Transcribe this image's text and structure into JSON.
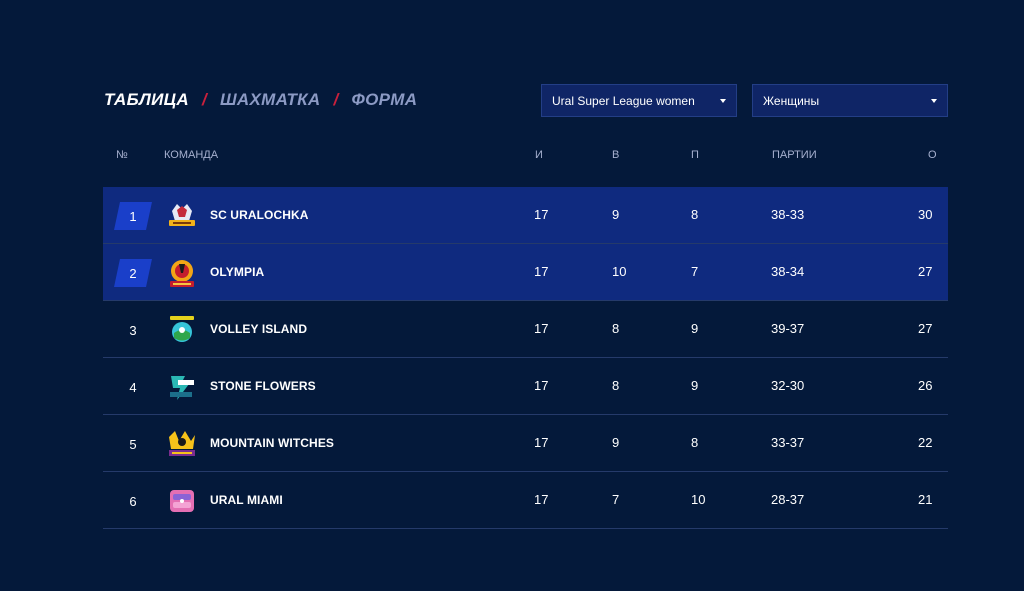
{
  "tabs": [
    {
      "label": "ТАБЛИЦА",
      "active": true
    },
    {
      "label": "ШАХМАТКА",
      "active": false
    },
    {
      "label": "ФОРМА",
      "active": false
    }
  ],
  "tab_separator": "/",
  "filters": {
    "league": "Ural Super League women",
    "gender": "Женщины"
  },
  "headers": {
    "rank": "№",
    "team": "КОМАНДА",
    "played": "И",
    "won": "В",
    "lost": "П",
    "sets": "ПАРТИИ",
    "points": "О"
  },
  "rows": [
    {
      "rank": "1",
      "team": "SC URALOCHKA",
      "played": "17",
      "won": "9",
      "lost": "8",
      "sets": "38-33",
      "points": "30",
      "highlight": true
    },
    {
      "rank": "2",
      "team": "OLYMPIA",
      "played": "17",
      "won": "10",
      "lost": "7",
      "sets": "38-34",
      "points": "27",
      "highlight": true
    },
    {
      "rank": "3",
      "team": "VOLLEY ISLAND",
      "played": "17",
      "won": "8",
      "lost": "9",
      "sets": "39-37",
      "points": "27",
      "highlight": false
    },
    {
      "rank": "4",
      "team": "STONE FLOWERS",
      "played": "17",
      "won": "8",
      "lost": "9",
      "sets": "32-30",
      "points": "26",
      "highlight": false
    },
    {
      "rank": "5",
      "team": "MOUNTAIN WITCHES",
      "played": "17",
      "won": "9",
      "lost": "8",
      "sets": "33-37",
      "points": "22",
      "highlight": false
    },
    {
      "rank": "6",
      "team": "URAL MIAMI",
      "played": "17",
      "won": "7",
      "lost": "10",
      "sets": "28-37",
      "points": "21",
      "highlight": false
    }
  ],
  "colors": {
    "background": "#04193a",
    "highlight_row": "#0f2a7f",
    "rank_badge": "#1a3fc9",
    "separator_accent": "#c8203c"
  }
}
